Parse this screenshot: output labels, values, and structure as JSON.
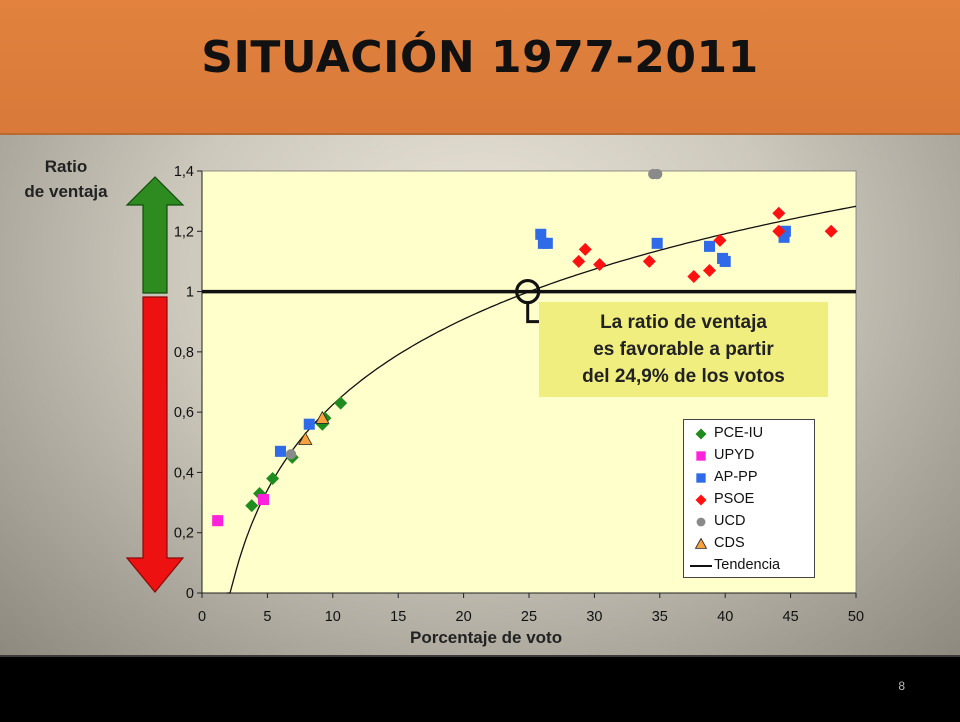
{
  "header": {
    "title": "SITUACIÓN 1977-2011"
  },
  "footer": {
    "page_number": "8"
  },
  "annotation": {
    "lines": [
      "La ratio de ventaja",
      "es favorable a partir",
      "del 24,9% de los votos"
    ]
  },
  "colors": {
    "up_arrow": "#2e8b1f",
    "down_arrow": "#ee1111",
    "plot_bg": "#ffffcc",
    "annotation_bg": "#f1ee80"
  },
  "chart_data": {
    "type": "scatter",
    "title": "",
    "xlabel": "Porcentaje de voto",
    "ylabel_lines": [
      "Ratio",
      "de ventaja"
    ],
    "xlim": [
      0,
      50
    ],
    "ylim": [
      0,
      1.4
    ],
    "xticks": [
      "0",
      "5",
      "10",
      "15",
      "20",
      "25",
      "30",
      "35",
      "40",
      "45",
      "50"
    ],
    "yticks": [
      "0",
      "0,2",
      "0,4",
      "0,6",
      "0,8",
      "1",
      "1,2",
      "1,4"
    ],
    "reference_line_y": 1,
    "threshold_x": 24.9,
    "series": [
      {
        "name": "PCE-IU",
        "marker": "diamond",
        "color": "#1e8c1e",
        "points": [
          [
            3.8,
            0.29
          ],
          [
            4.4,
            0.33
          ],
          [
            5.4,
            0.38
          ],
          [
            6.9,
            0.45
          ],
          [
            9.2,
            0.56
          ],
          [
            9.4,
            0.58
          ],
          [
            10.6,
            0.63
          ]
        ]
      },
      {
        "name": "UPYD",
        "marker": "square",
        "color": "#ff22dd",
        "points": [
          [
            1.2,
            0.24
          ],
          [
            4.7,
            0.31
          ]
        ]
      },
      {
        "name": "AP-PP",
        "marker": "square",
        "color": "#2f6be8",
        "points": [
          [
            6.0,
            0.47
          ],
          [
            8.2,
            0.56
          ],
          [
            25.9,
            1.19
          ],
          [
            26.1,
            1.16
          ],
          [
            26.4,
            1.16
          ],
          [
            34.8,
            1.16
          ],
          [
            38.8,
            1.15
          ],
          [
            39.8,
            1.11
          ],
          [
            40.0,
            1.1
          ],
          [
            44.5,
            1.18
          ],
          [
            44.6,
            1.2
          ]
        ]
      },
      {
        "name": "PSOE",
        "marker": "diamond",
        "color": "#ff1111",
        "points": [
          [
            28.8,
            1.1
          ],
          [
            29.3,
            1.14
          ],
          [
            30.4,
            1.09
          ],
          [
            34.2,
            1.1
          ],
          [
            37.6,
            1.05
          ],
          [
            38.8,
            1.07
          ],
          [
            39.6,
            1.17
          ],
          [
            44.1,
            1.2
          ],
          [
            44.1,
            1.26
          ],
          [
            48.1,
            1.2
          ]
        ]
      },
      {
        "name": "UCD",
        "marker": "circle",
        "color": "#8a8a8a",
        "points": [
          [
            6.8,
            0.46
          ],
          [
            34.5,
            1.39
          ],
          [
            34.8,
            1.39
          ]
        ]
      },
      {
        "name": "CDS",
        "marker": "triangle",
        "color": "#f7a23c",
        "points": [
          [
            7.9,
            0.51
          ],
          [
            9.2,
            0.58
          ]
        ]
      }
    ],
    "trend": {
      "name": "Tendencia",
      "formula": "0.409*ln(x) - 0.317",
      "x_range": [
        1.9,
        50
      ]
    },
    "legend": {
      "position": "bottom-right"
    }
  }
}
